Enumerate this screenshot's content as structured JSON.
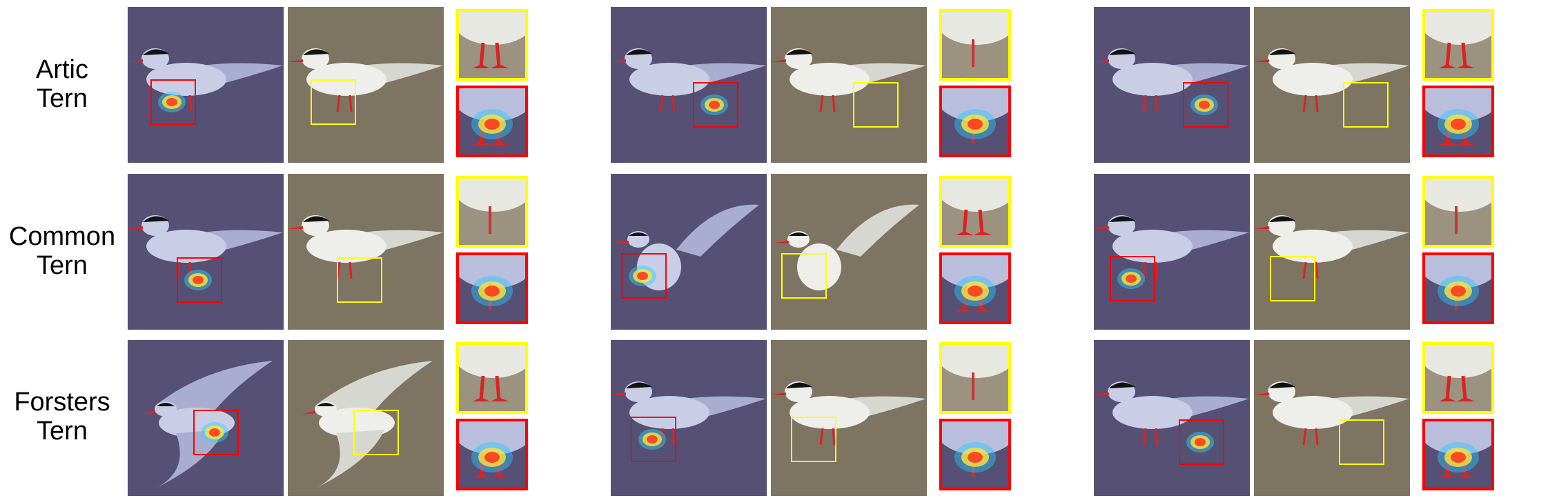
{
  "rows": [
    {
      "label_line1": "Artic",
      "label_line2": "Tern"
    },
    {
      "label_line1": "Common",
      "label_line2": "Tern"
    },
    {
      "label_line1": "Forsters",
      "label_line2": "Tern"
    }
  ],
  "colors": {
    "heatmap_background": "#565074",
    "original_background": "#7e7462",
    "highlight_box_red": "#ff0000",
    "highlight_box_yellow": "#ffff00"
  }
}
